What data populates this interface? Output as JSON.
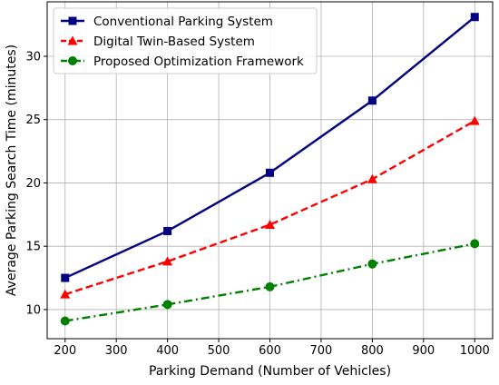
{
  "chart_data": {
    "type": "line",
    "title": "",
    "xlabel": "Parking Demand (Number of Vehicles)",
    "ylabel": "Average Parking Search Time (minutes)",
    "x": [
      200,
      400,
      600,
      800,
      1000
    ],
    "xlim": [
      165,
      1035
    ],
    "ylim": [
      7.7,
      34.3
    ],
    "xticks": [
      200,
      300,
      400,
      500,
      600,
      700,
      800,
      900,
      1000
    ],
    "yticks": [
      10,
      15,
      20,
      25,
      30
    ],
    "grid": true,
    "legend_position": "top-left",
    "series": [
      {
        "name": "Conventional Parking System",
        "values": [
          12.5,
          16.2,
          20.8,
          26.5,
          33.1
        ],
        "color": "#000080",
        "line_style": "solid",
        "marker": "square"
      },
      {
        "name": "Digital Twin-Based System",
        "values": [
          11.2,
          13.8,
          16.7,
          20.3,
          24.9
        ],
        "color": "#ff0000",
        "line_style": "dashed",
        "marker": "triangle"
      },
      {
        "name": "Proposed Optimization Framework",
        "values": [
          9.1,
          10.4,
          11.8,
          13.6,
          15.2
        ],
        "color": "#008000",
        "line_style": "dash-dot",
        "marker": "circle"
      }
    ]
  }
}
